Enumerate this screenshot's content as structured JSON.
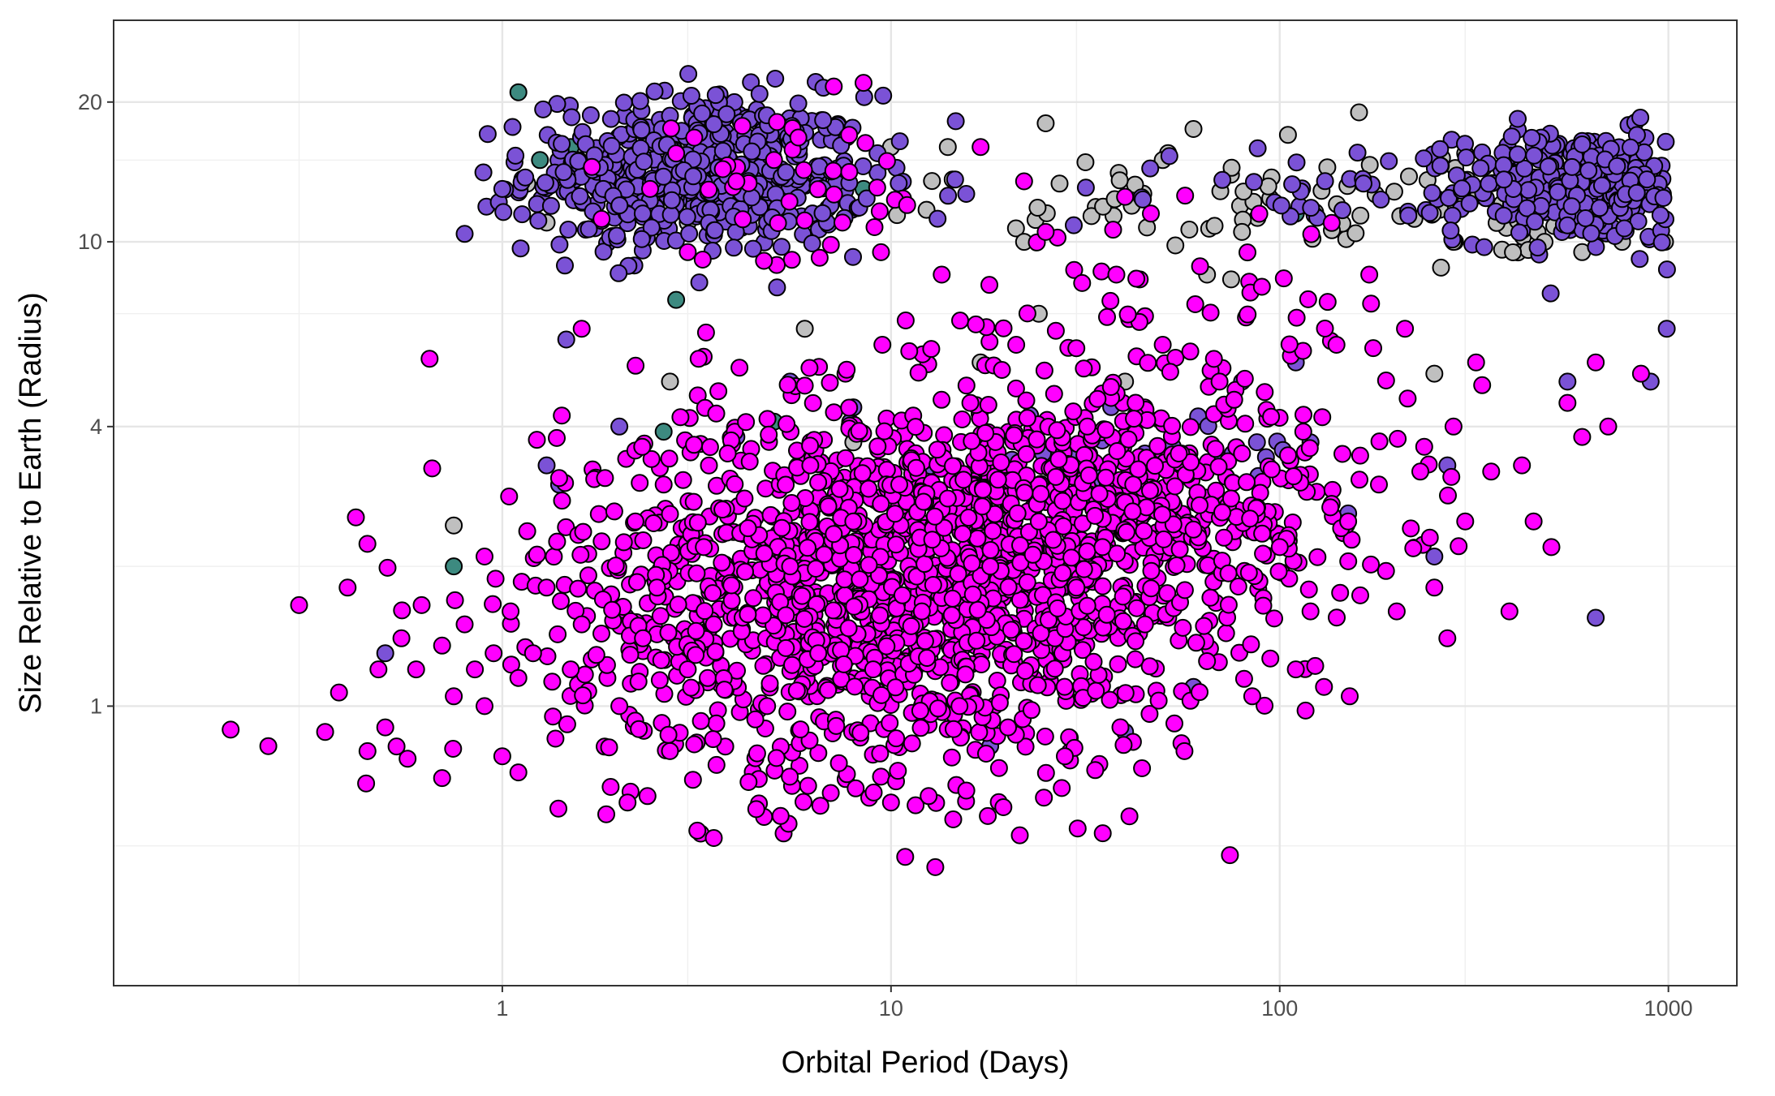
{
  "chart_data": {
    "type": "scatter",
    "title": "",
    "xlabel": "Orbital Period (Days)",
    "ylabel": "Size Relative to Earth (Radius)",
    "x_scale": "log10",
    "y_scale": "log10",
    "xlim": [
      0.1,
      1500
    ],
    "ylim": [
      0.25,
      30
    ],
    "x_ticks": [
      1,
      10,
      100,
      1000
    ],
    "x_tick_labels": [
      "1",
      "10",
      "100",
      "1000"
    ],
    "y_ticks": [
      1,
      4,
      10,
      20
    ],
    "y_tick_labels": [
      "1",
      "4",
      "10",
      "20"
    ],
    "grid": true,
    "legend": "none",
    "point_outline": "#000000",
    "series": [
      {
        "color": "#ff00ff",
        "description_clusters": [],
        "points": [
          [
            0.2,
            0.89
          ],
          [
            0.25,
            0.82
          ],
          [
            0.3,
            1.65
          ],
          [
            0.35,
            0.88
          ],
          [
            0.38,
            1.07
          ],
          [
            0.4,
            1.8
          ],
          [
            0.42,
            2.55
          ],
          [
            0.45,
            0.8
          ],
          [
            0.48,
            1.2
          ],
          [
            0.5,
            0.9
          ],
          [
            0.55,
            1.4
          ],
          [
            0.6,
            1.2
          ],
          [
            0.62,
            1.65
          ],
          [
            0.65,
            5.6
          ],
          [
            0.66,
            3.25
          ],
          [
            0.7,
            0.7
          ],
          [
            0.7,
            1.35
          ],
          [
            0.75,
            1.05
          ],
          [
            0.8,
            1.5
          ],
          [
            0.85,
            1.2
          ],
          [
            0.9,
            1.0
          ],
          [
            0.9,
            2.1
          ],
          [
            0.95,
            1.3
          ],
          [
            1.0,
            0.78
          ],
          [
            1.05,
            1.6
          ],
          [
            1.1,
            1.15
          ],
          [
            1.1,
            0.72
          ],
          [
            1.2,
            1.3
          ],
          [
            1.3,
            1.8
          ],
          [
            1.35,
            0.95
          ],
          [
            1.4,
            3.1
          ],
          [
            1.5,
            1.2
          ],
          [
            1.6,
            1.5
          ],
          [
            1.6,
            6.5
          ],
          [
            1.7,
            14.5
          ],
          [
            1.8,
            11.2
          ],
          [
            1.9,
            0.67
          ],
          [
            2.0,
            1.0
          ],
          [
            2.1,
            0.62
          ],
          [
            2.2,
            2.5
          ],
          [
            2.3,
            1.4
          ],
          [
            2.4,
            13.0
          ],
          [
            2.5,
            1.8
          ],
          [
            2.6,
            3.0
          ],
          [
            2.7,
            0.8
          ],
          [
            2.8,
            15.5
          ],
          [
            3.0,
            1.2
          ],
          [
            3.0,
            9.5
          ],
          [
            3.2,
            5.6
          ],
          [
            3.3,
            2.2
          ],
          [
            3.5,
            0.52
          ],
          [
            3.5,
            1.5
          ],
          [
            3.8,
            3.5
          ],
          [
            4.0,
            13.5
          ],
          [
            4.2,
            2.8
          ],
          [
            4.5,
            0.6
          ],
          [
            4.8,
            1.0
          ],
          [
            5.0,
            15.0
          ],
          [
            5.2,
            0.58
          ],
          [
            5.5,
            2.0
          ],
          [
            6.0,
            4.9
          ],
          [
            6.2,
            3.3
          ],
          [
            6.5,
            1.3
          ],
          [
            7.0,
            0.65
          ],
          [
            7.5,
            11.0
          ],
          [
            7.8,
            17.0
          ],
          [
            8.0,
            2.5
          ],
          [
            8.5,
            22.0
          ],
          [
            9.0,
            1.2
          ],
          [
            9.5,
            6.0
          ],
          [
            10.0,
            0.62
          ],
          [
            10.5,
            3.0
          ],
          [
            11.0,
            12.0
          ],
          [
            12.0,
            1.6
          ],
          [
            12.5,
            0.64
          ],
          [
            13.0,
            0.45
          ],
          [
            13.5,
            8.5
          ],
          [
            14.0,
            2.8
          ],
          [
            15.0,
            1.0
          ],
          [
            16.0,
            4.5
          ],
          [
            17.0,
            16.0
          ],
          [
            18.0,
            2.0
          ],
          [
            20.0,
            0.9
          ],
          [
            21.0,
            6.0
          ],
          [
            22.0,
            13.5
          ],
          [
            24.0,
            2.5
          ],
          [
            25.0,
            10.5
          ],
          [
            27.0,
            3.4
          ],
          [
            28.0,
            0.78
          ],
          [
            30.0,
            1.8
          ],
          [
            32.0,
            4.0
          ],
          [
            35.0,
            2.2
          ],
          [
            38.0,
            8.5
          ],
          [
            40.0,
            12.5
          ],
          [
            42.0,
            3.0
          ],
          [
            45.0,
            1.5
          ],
          [
            50.0,
            6.0
          ],
          [
            55.0,
            3.5
          ],
          [
            60.0,
            2.4
          ],
          [
            65.0,
            1.25
          ],
          [
            70.0,
            5.0
          ],
          [
            75.0,
            2.8
          ],
          [
            80.0,
            3.5
          ],
          [
            85.0,
            1.05
          ],
          [
            90.0,
            8.0
          ],
          [
            95.0,
            4.2
          ],
          [
            100.0,
            2.2
          ],
          [
            110.0,
            1.2
          ],
          [
            115.0,
            3.9
          ],
          [
            120.0,
            1.6
          ],
          [
            130.0,
            1.1
          ],
          [
            140.0,
            6.0
          ],
          [
            150.0,
            2.5
          ],
          [
            170.0,
            8.5
          ],
          [
            180.0,
            3.0
          ],
          [
            200.0,
            1.6
          ],
          [
            210.0,
            6.5
          ],
          [
            230.0,
            3.2
          ],
          [
            250.0,
            1.8
          ],
          [
            270.0,
            1.4
          ],
          [
            280.0,
            4.0
          ],
          [
            300.0,
            2.5
          ],
          [
            320.0,
            5.5
          ],
          [
            350.0,
            3.2
          ],
          [
            390.0,
            1.6
          ],
          [
            420.0,
            3.3
          ],
          [
            450.0,
            2.5
          ],
          [
            500.0,
            2.2
          ],
          [
            550.0,
            4.5
          ],
          [
            600.0,
            3.8
          ],
          [
            650.0,
            5.5
          ],
          [
            700.0,
            4.0
          ],
          [
            850.0,
            5.2
          ]
        ],
        "cloud": [
          {
            "x_center": 10,
            "x_spread": 0.42,
            "y_center": 1.8,
            "y_spread": 0.2,
            "count": 1500
          },
          {
            "x_center": 40,
            "x_spread": 0.35,
            "y_center": 2.7,
            "y_spread": 0.12,
            "count": 450
          },
          {
            "x_center": 6,
            "x_spread": 0.2,
            "y_center": 12.5,
            "y_spread": 0.08,
            "count": 35
          },
          {
            "x_center": 40,
            "x_spread": 0.35,
            "y_center": 7.0,
            "y_spread": 0.12,
            "count": 60
          }
        ]
      },
      {
        "color": "#7b52d6",
        "points": [
          [
            0.5,
            1.3
          ],
          [
            0.8,
            10.4
          ],
          [
            1.0,
            13.0
          ],
          [
            1.3,
            3.3
          ],
          [
            1.4,
            3.0
          ],
          [
            2.0,
            4.0
          ],
          [
            4.0,
            3.8
          ],
          [
            5.5,
            5.0
          ],
          [
            8.0,
            4.4
          ],
          [
            12.0,
            1.0
          ],
          [
            18.0,
            0.82
          ],
          [
            40.0,
            0.88
          ],
          [
            45.0,
            3.5
          ],
          [
            60.0,
            1.1
          ],
          [
            80.0,
            5.0
          ],
          [
            110.0,
            5.5
          ],
          [
            120.0,
            3.7
          ],
          [
            150.0,
            2.6
          ],
          [
            250.0,
            2.1
          ],
          [
            270.0,
            3.3
          ],
          [
            550.0,
            5.0
          ],
          [
            650.0,
            1.55
          ],
          [
            900.0,
            5.0
          ],
          [
            990.0,
            6.5
          ]
        ],
        "cloud": [
          {
            "x_center": 3.2,
            "x_spread": 0.22,
            "y_center": 14.0,
            "y_spread": 0.085,
            "count": 520
          },
          {
            "x_center": 600,
            "x_spread": 0.16,
            "y_center": 13.2,
            "y_spread": 0.06,
            "count": 320
          },
          {
            "x_center": 130,
            "x_spread": 0.35,
            "y_center": 13.0,
            "y_spread": 0.05,
            "count": 45
          },
          {
            "x_center": 40,
            "x_spread": 0.3,
            "y_center": 3.5,
            "y_spread": 0.06,
            "count": 25
          }
        ]
      },
      {
        "color": "#bfbfbf",
        "points": [
          [
            1.3,
            11.0
          ],
          [
            2.0,
            11.5
          ],
          [
            2.7,
            5.0
          ],
          [
            3.0,
            11.0
          ],
          [
            6.0,
            6.5
          ],
          [
            8.0,
            3.7
          ],
          [
            10.0,
            16.0
          ],
          [
            14.0,
            16.0
          ],
          [
            17.0,
            5.5
          ],
          [
            22.0,
            10.0
          ],
          [
            24.0,
            7.0
          ],
          [
            25.0,
            18.0
          ],
          [
            40.0,
            5.0
          ],
          [
            50.0,
            15.0
          ],
          [
            60.0,
            17.5
          ],
          [
            65.0,
            8.5
          ],
          [
            75.0,
            8.3
          ],
          [
            80.0,
            10.5
          ],
          [
            105.0,
            17.0
          ],
          [
            160.0,
            19.0
          ],
          [
            250.0,
            5.2
          ],
          [
            260.0,
            8.8
          ],
          [
            280.0,
            10.0
          ],
          [
            300.0,
            15.5
          ],
          [
            480.0,
            10.0
          ],
          [
            600.0,
            9.5
          ],
          [
            760.0,
            10.0
          ],
          [
            980.0,
            10.0
          ],
          [
            0.75,
            2.45
          ]
        ],
        "cloud": [
          {
            "x_center": 300,
            "x_spread": 0.45,
            "y_center": 12.0,
            "y_spread": 0.06,
            "count": 70
          },
          {
            "x_center": 30,
            "x_spread": 0.35,
            "y_center": 12.5,
            "y_spread": 0.06,
            "count": 30
          }
        ]
      },
      {
        "color": "#3d8a80",
        "points": [
          [
            1.1,
            21.0
          ],
          [
            1.25,
            15.0
          ],
          [
            1.5,
            16.0
          ],
          [
            2.6,
            17.0
          ],
          [
            2.8,
            7.5
          ],
          [
            2.6,
            3.9
          ],
          [
            5.0,
            4.1
          ],
          [
            0.75,
            2.0
          ],
          [
            110.0,
            11.5
          ],
          [
            8.5,
            13.0
          ]
        ]
      }
    ]
  }
}
